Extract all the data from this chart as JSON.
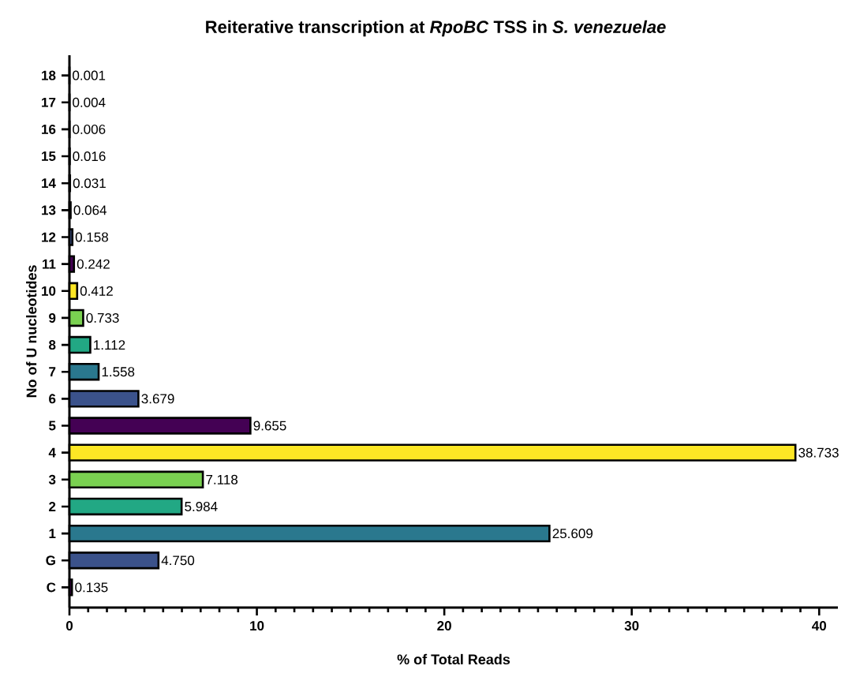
{
  "chart_data": {
    "type": "bar",
    "orientation": "horizontal",
    "title": "Reiterative transcription at *RpoBC* TSS in *S. venezuelae*",
    "xlabel": "% of Total Reads",
    "ylabel": "No of U nucleotides",
    "categories": [
      "18",
      "17",
      "16",
      "15",
      "14",
      "13",
      "12",
      "11",
      "10",
      "9",
      "8",
      "7",
      "6",
      "5",
      "4",
      "3",
      "2",
      "1",
      "G",
      "C"
    ],
    "values": [
      0.001,
      0.004,
      0.006,
      0.016,
      0.031,
      0.064,
      0.158,
      0.242,
      0.412,
      0.733,
      1.112,
      1.558,
      3.679,
      9.655,
      38.733,
      7.118,
      5.984,
      25.609,
      4.75,
      0.135
    ],
    "value_labels": [
      "0.001",
      "0.004",
      "0.006",
      "0.016",
      "0.031",
      "0.064",
      "0.158",
      "0.242",
      "0.412",
      "0.733",
      "1.112",
      "1.558",
      "3.679",
      "9.655",
      "38.733",
      "7.118",
      "5.984",
      "25.609",
      "4.750",
      "0.135"
    ],
    "colors": [
      "#3b528b",
      "#440154",
      "#fde725",
      "#7ad151",
      "#22a884",
      "#2a788e",
      "#3b528b",
      "#440154",
      "#fde725",
      "#7ad151",
      "#22a884",
      "#2a788e",
      "#3b528b",
      "#440154",
      "#fde725",
      "#7ad151",
      "#22a884",
      "#2a788e",
      "#3b528b",
      "#440154"
    ],
    "xlim": [
      0,
      41
    ],
    "xticks": [
      0,
      10,
      20,
      30,
      40
    ]
  }
}
